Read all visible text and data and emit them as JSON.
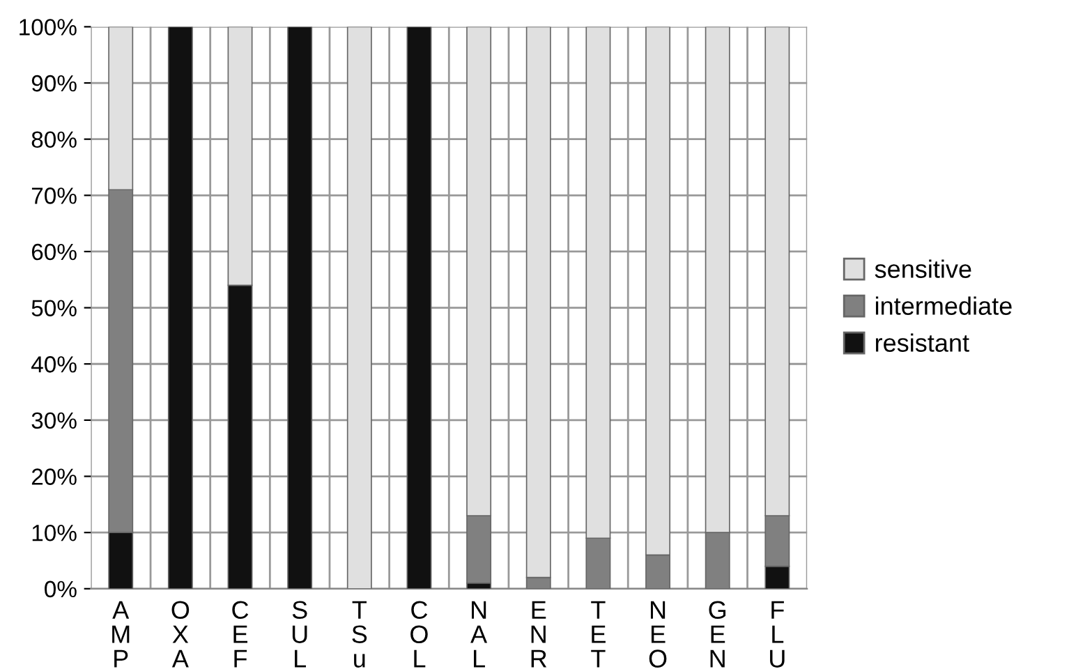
{
  "chart_data": {
    "type": "bar",
    "stacked": true,
    "categories": [
      "A\nM\nP",
      "O\nX\nA",
      "C\nE\nF",
      "S\nU\nL",
      "T\nS\nu",
      "C\nO\nL",
      "N\nA\nL",
      "E\nN\nR",
      "T\nE\nT",
      "N\nE\nO",
      "G\nE\nN",
      "F\nL\nU"
    ],
    "series": [
      {
        "name": "resistant",
        "color": "#111111",
        "values": [
          10,
          100,
          54,
          100,
          0,
          100,
          1,
          0,
          0,
          0,
          0,
          4
        ]
      },
      {
        "name": "intermediate",
        "color": "#808080",
        "values": [
          61,
          0,
          0,
          0,
          0,
          0,
          12,
          2,
          9,
          6,
          10,
          9
        ]
      },
      {
        "name": "sensitive",
        "color": "#e0e0e0",
        "values": [
          29,
          0,
          46,
          0,
          100,
          0,
          87,
          98,
          91,
          94,
          90,
          87
        ]
      }
    ],
    "ylim": [
      0,
      100
    ],
    "yticks": [
      {
        "value": 0,
        "label": "0%"
      },
      {
        "value": 10,
        "label": "10%"
      },
      {
        "value": 20,
        "label": "20%"
      },
      {
        "value": 30,
        "label": "30%"
      },
      {
        "value": 40,
        "label": "40%"
      },
      {
        "value": 50,
        "label": "50%"
      },
      {
        "value": 60,
        "label": "60%"
      },
      {
        "value": 70,
        "label": "70%"
      },
      {
        "value": 80,
        "label": "80%"
      },
      {
        "value": 90,
        "label": "90%"
      },
      {
        "value": 100,
        "label": "100%"
      }
    ],
    "grid": true,
    "legend": "right"
  }
}
